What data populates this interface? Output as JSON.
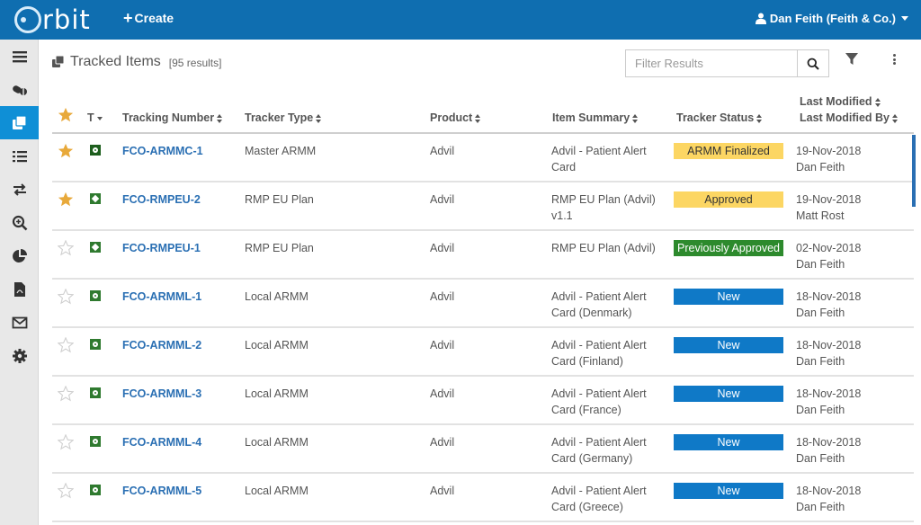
{
  "app": {
    "logo_text": "rbit",
    "create_label": "Create",
    "user_label": "Dan Feith (Feith & Co.)"
  },
  "sidebar": {
    "items": [
      {
        "icon": "menu-icon",
        "active": false
      },
      {
        "icon": "pills-icon",
        "active": false
      },
      {
        "icon": "tracked-items-icon",
        "active": true
      },
      {
        "icon": "list-icon",
        "active": false
      },
      {
        "icon": "transfer-icon",
        "active": false
      },
      {
        "icon": "search-zoom-icon",
        "active": false
      },
      {
        "icon": "pie-chart-icon",
        "active": false
      },
      {
        "icon": "pdf-file-icon",
        "active": false
      },
      {
        "icon": "envelope-icon",
        "active": false
      },
      {
        "icon": "gear-icon",
        "active": false
      }
    ]
  },
  "page": {
    "title": "Tracked Items",
    "results": "[95 results]",
    "filter_placeholder": "Filter Results"
  },
  "columns": {
    "type": "T",
    "tracking_number": "Tracking Number",
    "tracker_type": "Tracker Type",
    "product": "Product",
    "item_summary": "Item Summary",
    "tracker_status": "Tracker Status",
    "last_modified": "Last Modified",
    "last_modified_by": "Last Modified By"
  },
  "rows": [
    {
      "starred": true,
      "type_icon": "master",
      "tracking": "FCO-ARMMC-1",
      "tracker_type": "Master ARMM",
      "product": "Advil",
      "summary1": "Advil - Patient Alert",
      "summary2": "Card",
      "status": "ARMM Finalized",
      "status_kind": "finalized",
      "date": "19-Nov-2018",
      "by": "Dan Feith"
    },
    {
      "starred": true,
      "type_icon": "diamond",
      "tracking": "FCO-RMPEU-2",
      "tracker_type": "RMP EU Plan",
      "product": "Advil",
      "summary1": "RMP EU Plan (Advil)",
      "summary2": "v1.1",
      "status": "Approved",
      "status_kind": "approved",
      "date": "19-Nov-2018",
      "by": "Matt Rost"
    },
    {
      "starred": false,
      "type_icon": "diamond",
      "tracking": "FCO-RMPEU-1",
      "tracker_type": "RMP EU Plan",
      "product": "Advil",
      "summary1": "RMP EU Plan (Advil)",
      "summary2": "",
      "status": "Previously Approved",
      "status_kind": "prev",
      "date": "02-Nov-2018",
      "by": "Dan Feith"
    },
    {
      "starred": false,
      "type_icon": "dot",
      "tracking": "FCO-ARMML-1",
      "tracker_type": "Local ARMM",
      "product": "Advil",
      "summary1": "Advil - Patient Alert",
      "summary2": "Card (Denmark)",
      "status": "New",
      "status_kind": "new",
      "date": "18-Nov-2018",
      "by": "Dan Feith"
    },
    {
      "starred": false,
      "type_icon": "dot",
      "tracking": "FCO-ARMML-2",
      "tracker_type": "Local ARMM",
      "product": "Advil",
      "summary1": "Advil - Patient Alert",
      "summary2": "Card (Finland)",
      "status": "New",
      "status_kind": "new",
      "date": "18-Nov-2018",
      "by": "Dan Feith"
    },
    {
      "starred": false,
      "type_icon": "dot",
      "tracking": "FCO-ARMML-3",
      "tracker_type": "Local ARMM",
      "product": "Advil",
      "summary1": "Advil - Patient Alert",
      "summary2": "Card (France)",
      "status": "New",
      "status_kind": "new",
      "date": "18-Nov-2018",
      "by": "Dan Feith"
    },
    {
      "starred": false,
      "type_icon": "dot",
      "tracking": "FCO-ARMML-4",
      "tracker_type": "Local ARMM",
      "product": "Advil",
      "summary1": "Advil - Patient Alert",
      "summary2": "Card (Germany)",
      "status": "New",
      "status_kind": "new",
      "date": "18-Nov-2018",
      "by": "Dan Feith"
    },
    {
      "starred": false,
      "type_icon": "dot",
      "tracking": "FCO-ARMML-5",
      "tracker_type": "Local ARMM",
      "product": "Advil",
      "summary1": "Advil - Patient Alert",
      "summary2": "Card (Greece)",
      "status": "New",
      "status_kind": "new",
      "date": "18-Nov-2018",
      "by": "Dan Feith"
    }
  ],
  "colors": {
    "topbar": "#0f6eb0",
    "sidebar_active": "#0f8fd6",
    "link": "#2a6fb3",
    "star_filled": "#e8a93a",
    "status_yellow": "#fcd663",
    "status_green": "#2d8a2d",
    "status_blue": "#0f79c7"
  }
}
